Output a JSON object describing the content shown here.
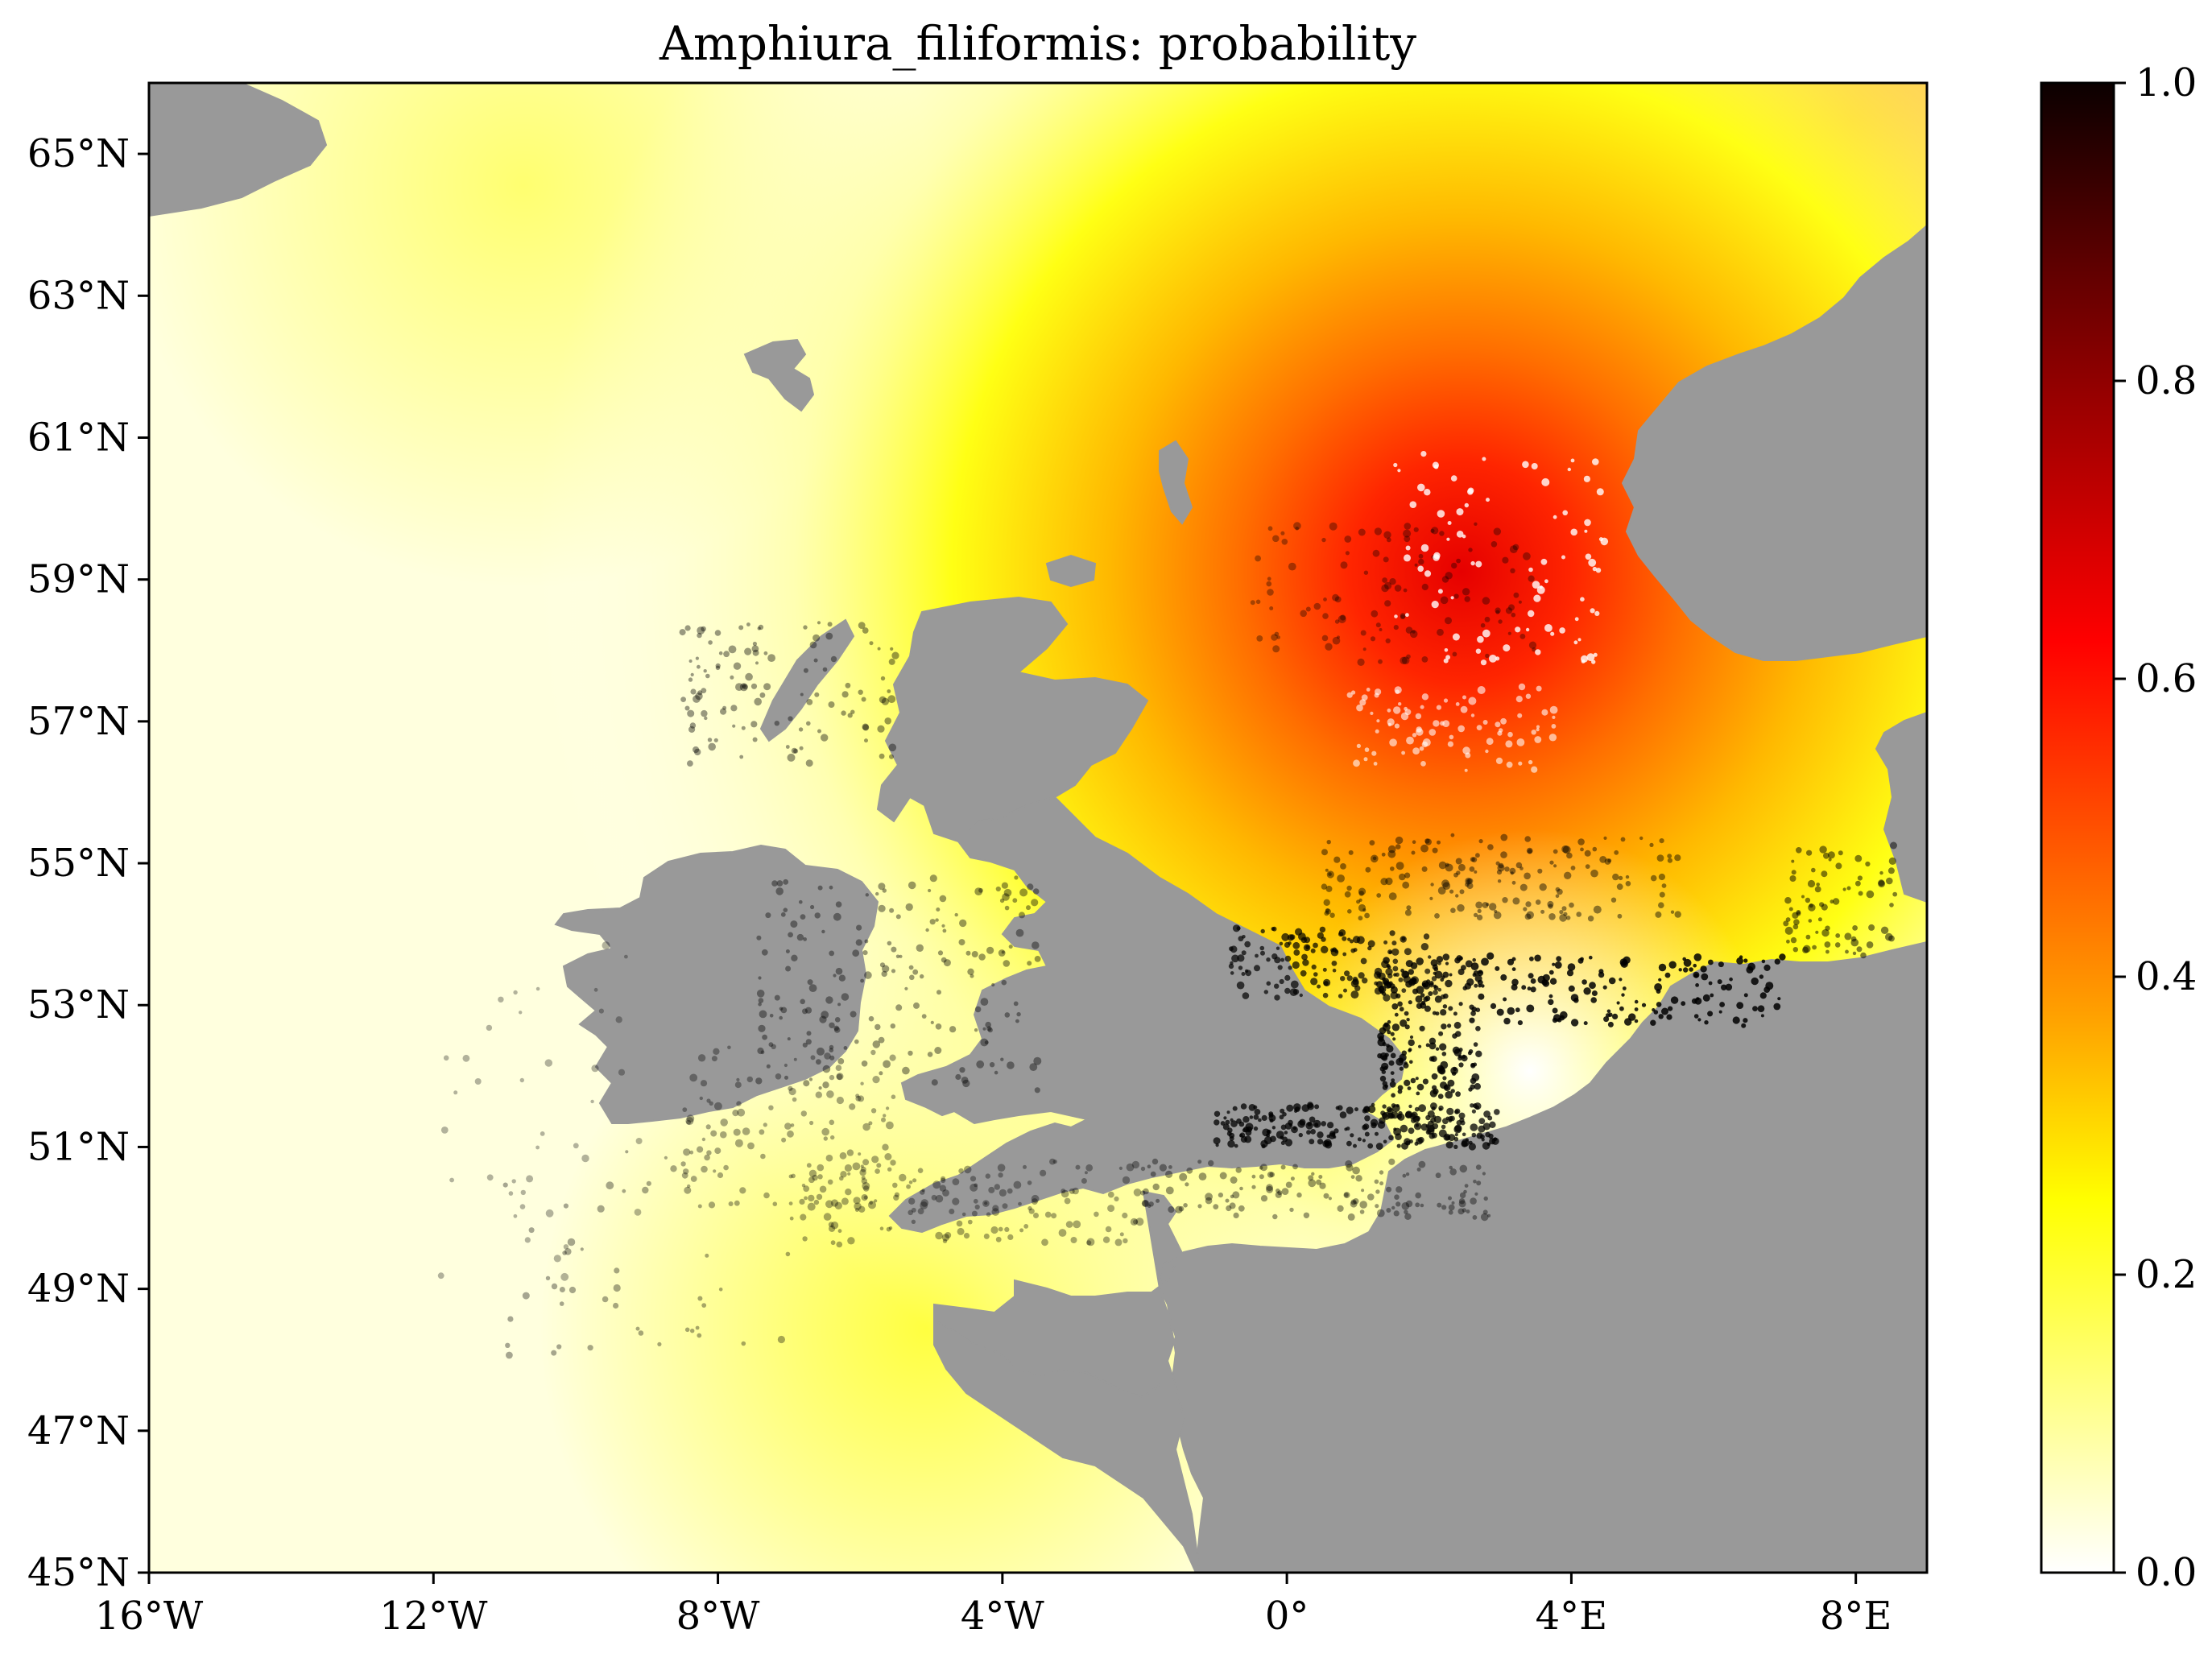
{
  "title": "Amphiura_filiformis: probability",
  "map": {
    "lon_range": [
      -16,
      9
    ],
    "lat_range": [
      45,
      66
    ],
    "x_ticks": [
      {
        "value": -16,
        "label": "16°W"
      },
      {
        "value": -12,
        "label": "12°W"
      },
      {
        "value": -8,
        "label": "8°W"
      },
      {
        "value": -4,
        "label": "4°W"
      },
      {
        "value": 0,
        "label": "0°"
      },
      {
        "value": 4,
        "label": "4°E"
      },
      {
        "value": 8,
        "label": "8°E"
      }
    ],
    "y_ticks": [
      {
        "value": 45,
        "label": "45°N"
      },
      {
        "value": 47,
        "label": "47°N"
      },
      {
        "value": 49,
        "label": "49°N"
      },
      {
        "value": 51,
        "label": "51°N"
      },
      {
        "value": 53,
        "label": "53°N"
      },
      {
        "value": 55,
        "label": "55°N"
      },
      {
        "value": 57,
        "label": "57°N"
      },
      {
        "value": 59,
        "label": "59°N"
      },
      {
        "value": 61,
        "label": "61°N"
      },
      {
        "value": 63,
        "label": "63°N"
      },
      {
        "value": 65,
        "label": "65°N"
      }
    ],
    "land_color": "#999999",
    "hotspot": {
      "lon": 2.8,
      "lat": 59.2,
      "peak_probability": 0.68
    }
  },
  "colorbar": {
    "colormap": "hot_r",
    "range": [
      0,
      1
    ],
    "ticks": [
      {
        "value": 0.0,
        "label": "0.0"
      },
      {
        "value": 0.2,
        "label": "0.2"
      },
      {
        "value": 0.4,
        "label": "0.4"
      },
      {
        "value": 0.6,
        "label": "0.6"
      },
      {
        "value": 0.8,
        "label": "0.8"
      },
      {
        "value": 1.0,
        "label": "1.0"
      }
    ]
  }
}
